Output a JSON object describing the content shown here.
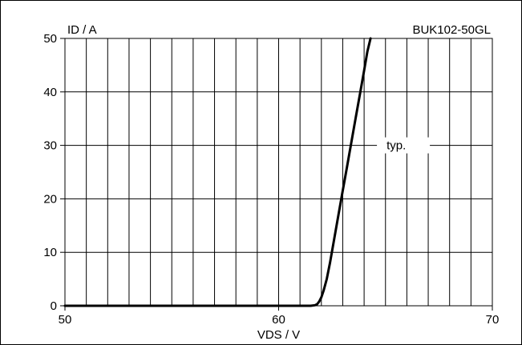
{
  "chart_data": {
    "type": "line",
    "title": "",
    "part_number": "BUK102-50GL",
    "xlabel": "VDS / V",
    "ylabel": "ID / A",
    "xlim": [
      50,
      70
    ],
    "ylim": [
      0,
      50
    ],
    "x_ticks": [
      50,
      60,
      70
    ],
    "y_ticks": [
      0,
      10,
      20,
      30,
      40,
      50
    ],
    "x_minor_step": 1,
    "y_major_step": 10,
    "grid": true,
    "line_color": "#000000",
    "series": [
      {
        "name": "typ.",
        "x": [
          50,
          55,
          60,
          61.5,
          61.7,
          61.8,
          61.9,
          62.0,
          62.1,
          62.25,
          62.4,
          62.6,
          62.8,
          63.0,
          63.2,
          63.4,
          63.6,
          63.8,
          64.0,
          64.15,
          64.3
        ],
        "y": [
          0,
          0,
          0,
          0,
          0.1,
          0.3,
          0.8,
          1.6,
          2.8,
          5.0,
          8.0,
          12.5,
          17.0,
          21.5,
          26.0,
          30.5,
          35.0,
          39.5,
          44.0,
          47.5,
          50
        ]
      }
    ]
  }
}
